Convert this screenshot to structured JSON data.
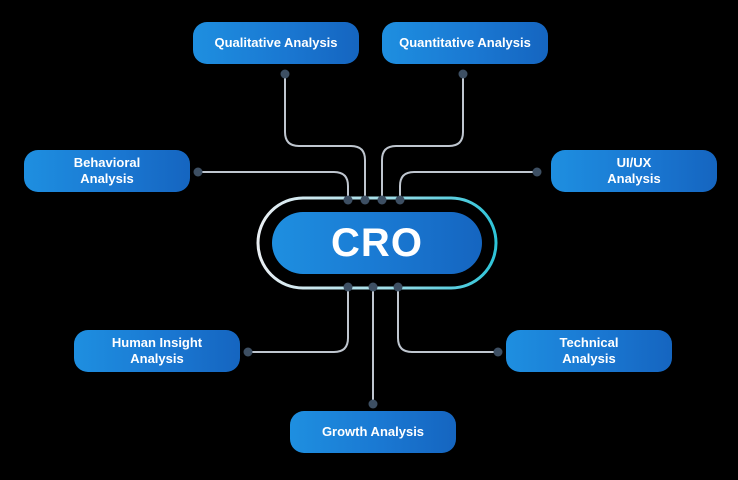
{
  "center": {
    "label": "CRO"
  },
  "nodes": {
    "qualitative": [
      "Qualitative Analysis"
    ],
    "quantitative": [
      "Quantitative Analysis"
    ],
    "behavioral": [
      "Behavioral",
      "Analysis"
    ],
    "uiux": [
      "UI/UX",
      "Analysis"
    ],
    "human_insight": [
      "Human Insight",
      "Analysis"
    ],
    "technical": [
      "Technical",
      "Analysis"
    ],
    "growth": [
      "Growth Analysis"
    ]
  },
  "colors": {
    "pill": "#1a78d2",
    "ring_teal": "#2ec4d8",
    "wire": "#bfc6cf",
    "dot": "#3d4f63"
  }
}
